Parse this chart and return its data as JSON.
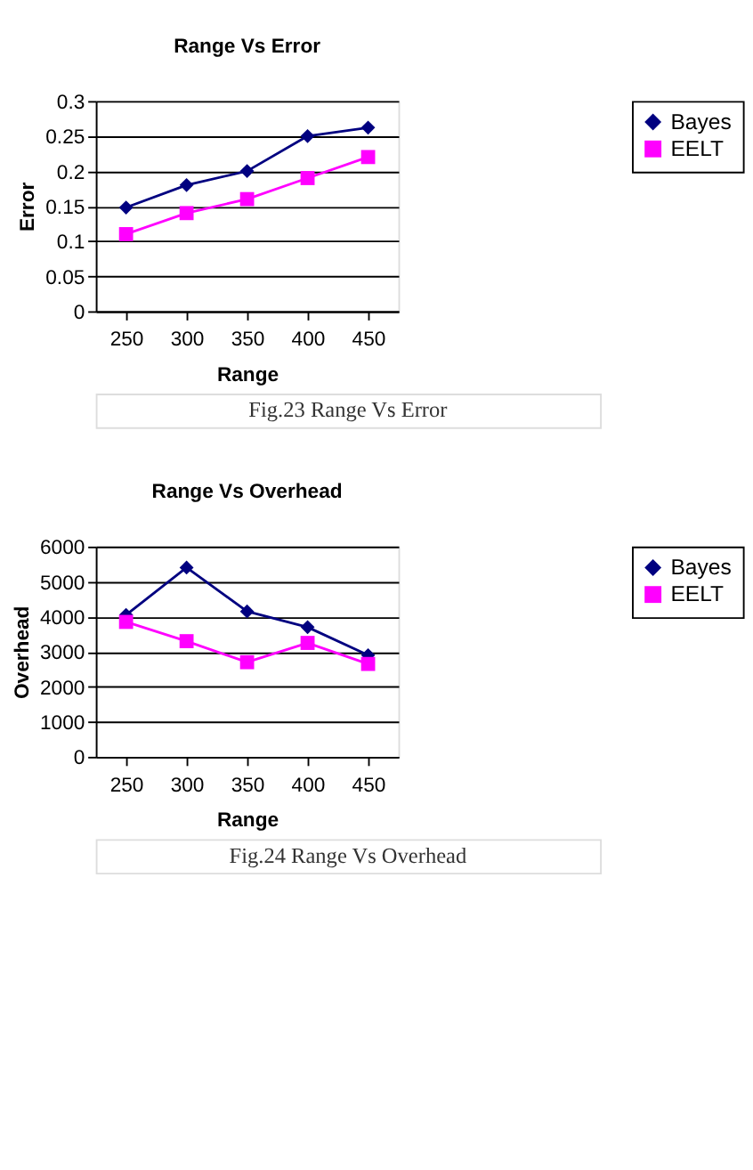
{
  "chart_data": [
    {
      "type": "line",
      "title": "Range Vs Error",
      "xlabel": "Range",
      "ylabel": "Error",
      "categories": [
        "250",
        "300",
        "350",
        "400",
        "450"
      ],
      "series": [
        {
          "name": "Bayes",
          "color": "#000080",
          "marker": "diamond",
          "values": [
            0.148,
            0.18,
            0.2,
            0.25,
            0.262
          ]
        },
        {
          "name": "EELT",
          "color": "#ff00ff",
          "marker": "square",
          "values": [
            0.11,
            0.14,
            0.16,
            0.19,
            0.22
          ]
        }
      ],
      "ylim": [
        0,
        0.3
      ],
      "yticks": [
        0,
        0.05,
        0.1,
        0.15,
        0.2,
        0.25,
        0.3
      ],
      "grid": "y",
      "legend": "right",
      "line_style": "solid",
      "annotations": [
        "Fig.23 Range Vs Error"
      ]
    },
    {
      "type": "line",
      "title": "Range Vs Overhead",
      "xlabel": "Range",
      "ylabel": "Overhead",
      "categories": [
        "250",
        "300",
        "350",
        "400",
        "450"
      ],
      "series": [
        {
          "name": "Bayes",
          "color": "#000080",
          "marker": "diamond",
          "values": [
            4050,
            5400,
            4150,
            3700,
            2900
          ]
        },
        {
          "name": "EELT",
          "color": "#ff00ff",
          "marker": "square",
          "values": [
            3850,
            3300,
            2700,
            3250,
            2650
          ]
        }
      ],
      "ylim": [
        0,
        6000
      ],
      "yticks": [
        0,
        1000,
        2000,
        3000,
        4000,
        5000,
        6000
      ],
      "grid": "y",
      "legend": "right",
      "line_style": "solid",
      "annotations": [
        "Fig.24 Range Vs Overhead"
      ]
    }
  ]
}
